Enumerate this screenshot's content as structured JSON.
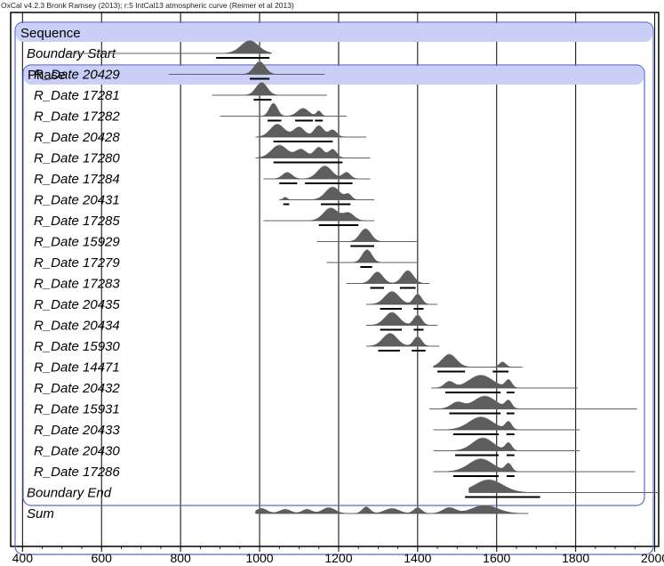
{
  "header_text": "OxCal v4.2.3 Bronk Ramsey (2013); r:5 IntCal13 atmospheric curve (Reimer et al 2013)",
  "chart_data": {
    "type": "oxcal-multiplot",
    "x_axis": {
      "range": [
        370,
        2010
      ],
      "ticks": [
        400,
        600,
        800,
        1000,
        1200,
        1400,
        1600,
        1800,
        2000
      ],
      "tick_labels": [
        "400",
        "600",
        "800",
        "1000",
        "1200",
        "1400",
        "1600",
        "1800",
        "2000"
      ],
      "grid": true
    },
    "groups": [
      {
        "label": "Sequence"
      },
      {
        "label": "Phase"
      }
    ],
    "rows": [
      {
        "label": "Boundary Start",
        "kind": "boundary",
        "range": [
          510,
          1030
        ],
        "peaks": [
          [
            975,
            22,
            1.0
          ]
        ],
        "hpd": [
          [
            890,
            1025
          ]
        ]
      },
      {
        "label": "R_Date 20429",
        "kind": "date",
        "range": [
          770,
          1165
        ],
        "peaks": [
          [
            1000,
            14,
            1.0
          ]
        ],
        "hpd": [
          [
            975,
            1025
          ]
        ]
      },
      {
        "label": "R_Date 17281",
        "kind": "date",
        "range": [
          880,
          1170
        ],
        "peaks": [
          [
            1005,
            14,
            1.0
          ]
        ],
        "hpd": [
          [
            985,
            1030
          ]
        ]
      },
      {
        "label": "R_Date 17282",
        "kind": "date",
        "range": [
          900,
          1220
        ],
        "peaks": [
          [
            1035,
            10,
            1.0
          ],
          [
            1110,
            14,
            0.6
          ],
          [
            1150,
            6,
            0.4
          ]
        ],
        "hpd": [
          [
            1020,
            1055
          ],
          [
            1090,
            1135
          ],
          [
            1140,
            1160
          ]
        ]
      },
      {
        "label": "R_Date 20428",
        "kind": "date",
        "range": [
          990,
          1270
        ],
        "peaks": [
          [
            1045,
            18,
            0.9
          ],
          [
            1100,
            14,
            0.7
          ],
          [
            1150,
            12,
            0.8
          ],
          [
            1185,
            10,
            0.5
          ]
        ],
        "hpd": [
          [
            1035,
            1185
          ]
        ]
      },
      {
        "label": "R_Date 17280",
        "kind": "date",
        "range": [
          990,
          1280
        ],
        "peaks": [
          [
            1050,
            20,
            0.9
          ],
          [
            1105,
            14,
            0.6
          ],
          [
            1150,
            12,
            0.75
          ],
          [
            1185,
            10,
            0.6
          ]
        ],
        "hpd": [
          [
            1035,
            1210
          ]
        ]
      },
      {
        "label": "R_Date 17284",
        "kind": "date",
        "range": [
          1010,
          1280
        ],
        "peaks": [
          [
            1070,
            12,
            0.5
          ],
          [
            1165,
            18,
            1.0
          ],
          [
            1220,
            10,
            0.5
          ]
        ],
        "hpd": [
          [
            1050,
            1095
          ],
          [
            1115,
            1235
          ]
        ]
      },
      {
        "label": "R_Date 20431",
        "kind": "date",
        "range": [
          1050,
          1290
        ],
        "peaks": [
          [
            1065,
            5,
            0.2
          ],
          [
            1185,
            18,
            1.0
          ],
          [
            1225,
            8,
            0.4
          ]
        ],
        "hpd": [
          [
            1060,
            1075
          ],
          [
            1155,
            1230
          ]
        ]
      },
      {
        "label": "R_Date 17285",
        "kind": "date",
        "range": [
          1010,
          1290
        ],
        "peaks": [
          [
            1180,
            18,
            1.0
          ],
          [
            1225,
            14,
            0.6
          ]
        ],
        "hpd": [
          [
            1150,
            1250
          ]
        ]
      },
      {
        "label": "R_Date 15929",
        "kind": "date",
        "range": [
          1145,
          1400
        ],
        "peaks": [
          [
            1268,
            14,
            1.0
          ]
        ],
        "hpd": [
          [
            1230,
            1290
          ]
        ]
      },
      {
        "label": "R_Date 17279",
        "kind": "date",
        "range": [
          1170,
          1400
        ],
        "peaks": [
          [
            1272,
            12,
            1.0
          ]
        ],
        "hpd": [
          [
            1255,
            1285
          ]
        ]
      },
      {
        "label": "R_Date 17283",
        "kind": "date",
        "range": [
          1220,
          1430
        ],
        "peaks": [
          [
            1298,
            14,
            0.8
          ],
          [
            1375,
            14,
            0.9
          ]
        ],
        "hpd": [
          [
            1280,
            1315
          ],
          [
            1355,
            1395
          ]
        ]
      },
      {
        "label": "R_Date 20435",
        "kind": "date",
        "range": [
          1270,
          1450
        ],
        "peaks": [
          [
            1335,
            18,
            1.0
          ],
          [
            1400,
            10,
            0.8
          ]
        ],
        "hpd": [
          [
            1305,
            1360
          ],
          [
            1390,
            1415
          ]
        ]
      },
      {
        "label": "R_Date 20434",
        "kind": "date",
        "range": [
          1270,
          1450
        ],
        "peaks": [
          [
            1335,
            18,
            1.0
          ],
          [
            1400,
            10,
            0.8
          ]
        ],
        "hpd": [
          [
            1305,
            1360
          ],
          [
            1390,
            1415
          ]
        ]
      },
      {
        "label": "R_Date 15930",
        "kind": "date",
        "range": [
          1270,
          1455
        ],
        "peaks": [
          [
            1330,
            18,
            1.0
          ],
          [
            1400,
            10,
            0.75
          ]
        ],
        "hpd": [
          [
            1300,
            1355
          ],
          [
            1385,
            1420
          ]
        ]
      },
      {
        "label": "R_Date 14471",
        "kind": "date",
        "range": [
          1440,
          1665
        ],
        "peaks": [
          [
            1480,
            18,
            1.0
          ],
          [
            1615,
            8,
            0.4
          ]
        ],
        "hpd": [
          [
            1450,
            1520
          ],
          [
            1590,
            1630
          ]
        ]
      },
      {
        "label": "R_Date 20432",
        "kind": "date",
        "range": [
          1435,
          1805
        ],
        "peaks": [
          [
            1480,
            12,
            0.5
          ],
          [
            1560,
            30,
            1.0
          ],
          [
            1630,
            8,
            0.6
          ]
        ],
        "hpd": [
          [
            1470,
            1610
          ],
          [
            1625,
            1645
          ]
        ]
      },
      {
        "label": "R_Date 15931",
        "kind": "date",
        "range": [
          1430,
          1955
        ],
        "peaks": [
          [
            1500,
            16,
            0.5
          ],
          [
            1570,
            28,
            1.0
          ],
          [
            1630,
            8,
            0.6
          ]
        ],
        "hpd": [
          [
            1480,
            1610
          ],
          [
            1625,
            1645
          ]
        ]
      },
      {
        "label": "R_Date 20433",
        "kind": "date",
        "range": [
          1440,
          1810
        ],
        "peaks": [
          [
            1560,
            30,
            1.0
          ],
          [
            1630,
            8,
            0.6
          ]
        ],
        "hpd": [
          [
            1490,
            1605
          ],
          [
            1625,
            1645
          ]
        ]
      },
      {
        "label": "R_Date 20430",
        "kind": "date",
        "range": [
          1440,
          1810
        ],
        "peaks": [
          [
            1565,
            26,
            1.0
          ],
          [
            1630,
            8,
            0.6
          ]
        ],
        "hpd": [
          [
            1495,
            1605
          ],
          [
            1625,
            1645
          ]
        ]
      },
      {
        "label": "R_Date 17286",
        "kind": "date",
        "range": [
          1440,
          1950
        ],
        "peaks": [
          [
            1560,
            30,
            1.0
          ],
          [
            1630,
            8,
            0.6
          ]
        ],
        "hpd": [
          [
            1490,
            1605
          ],
          [
            1625,
            1645
          ]
        ]
      },
      {
        "label": "Boundary End",
        "kind": "boundary",
        "range": [
          1530,
          2010
        ],
        "peaks": [
          [
            1580,
            35,
            1.0
          ]
        ],
        "hpd": [
          [
            1520,
            1710
          ]
        ]
      },
      {
        "label": "Sum",
        "kind": "sum",
        "range": [
          990,
          1680
        ],
        "peaks": [
          [
            1005,
            14,
            0.6
          ],
          [
            1065,
            14,
            0.5
          ],
          [
            1120,
            12,
            0.5
          ],
          [
            1175,
            16,
            0.7
          ],
          [
            1270,
            10,
            0.8
          ],
          [
            1335,
            18,
            0.6
          ],
          [
            1400,
            10,
            0.7
          ],
          [
            1480,
            16,
            0.7
          ],
          [
            1570,
            32,
            1.0
          ]
        ],
        "hpd": []
      }
    ]
  }
}
